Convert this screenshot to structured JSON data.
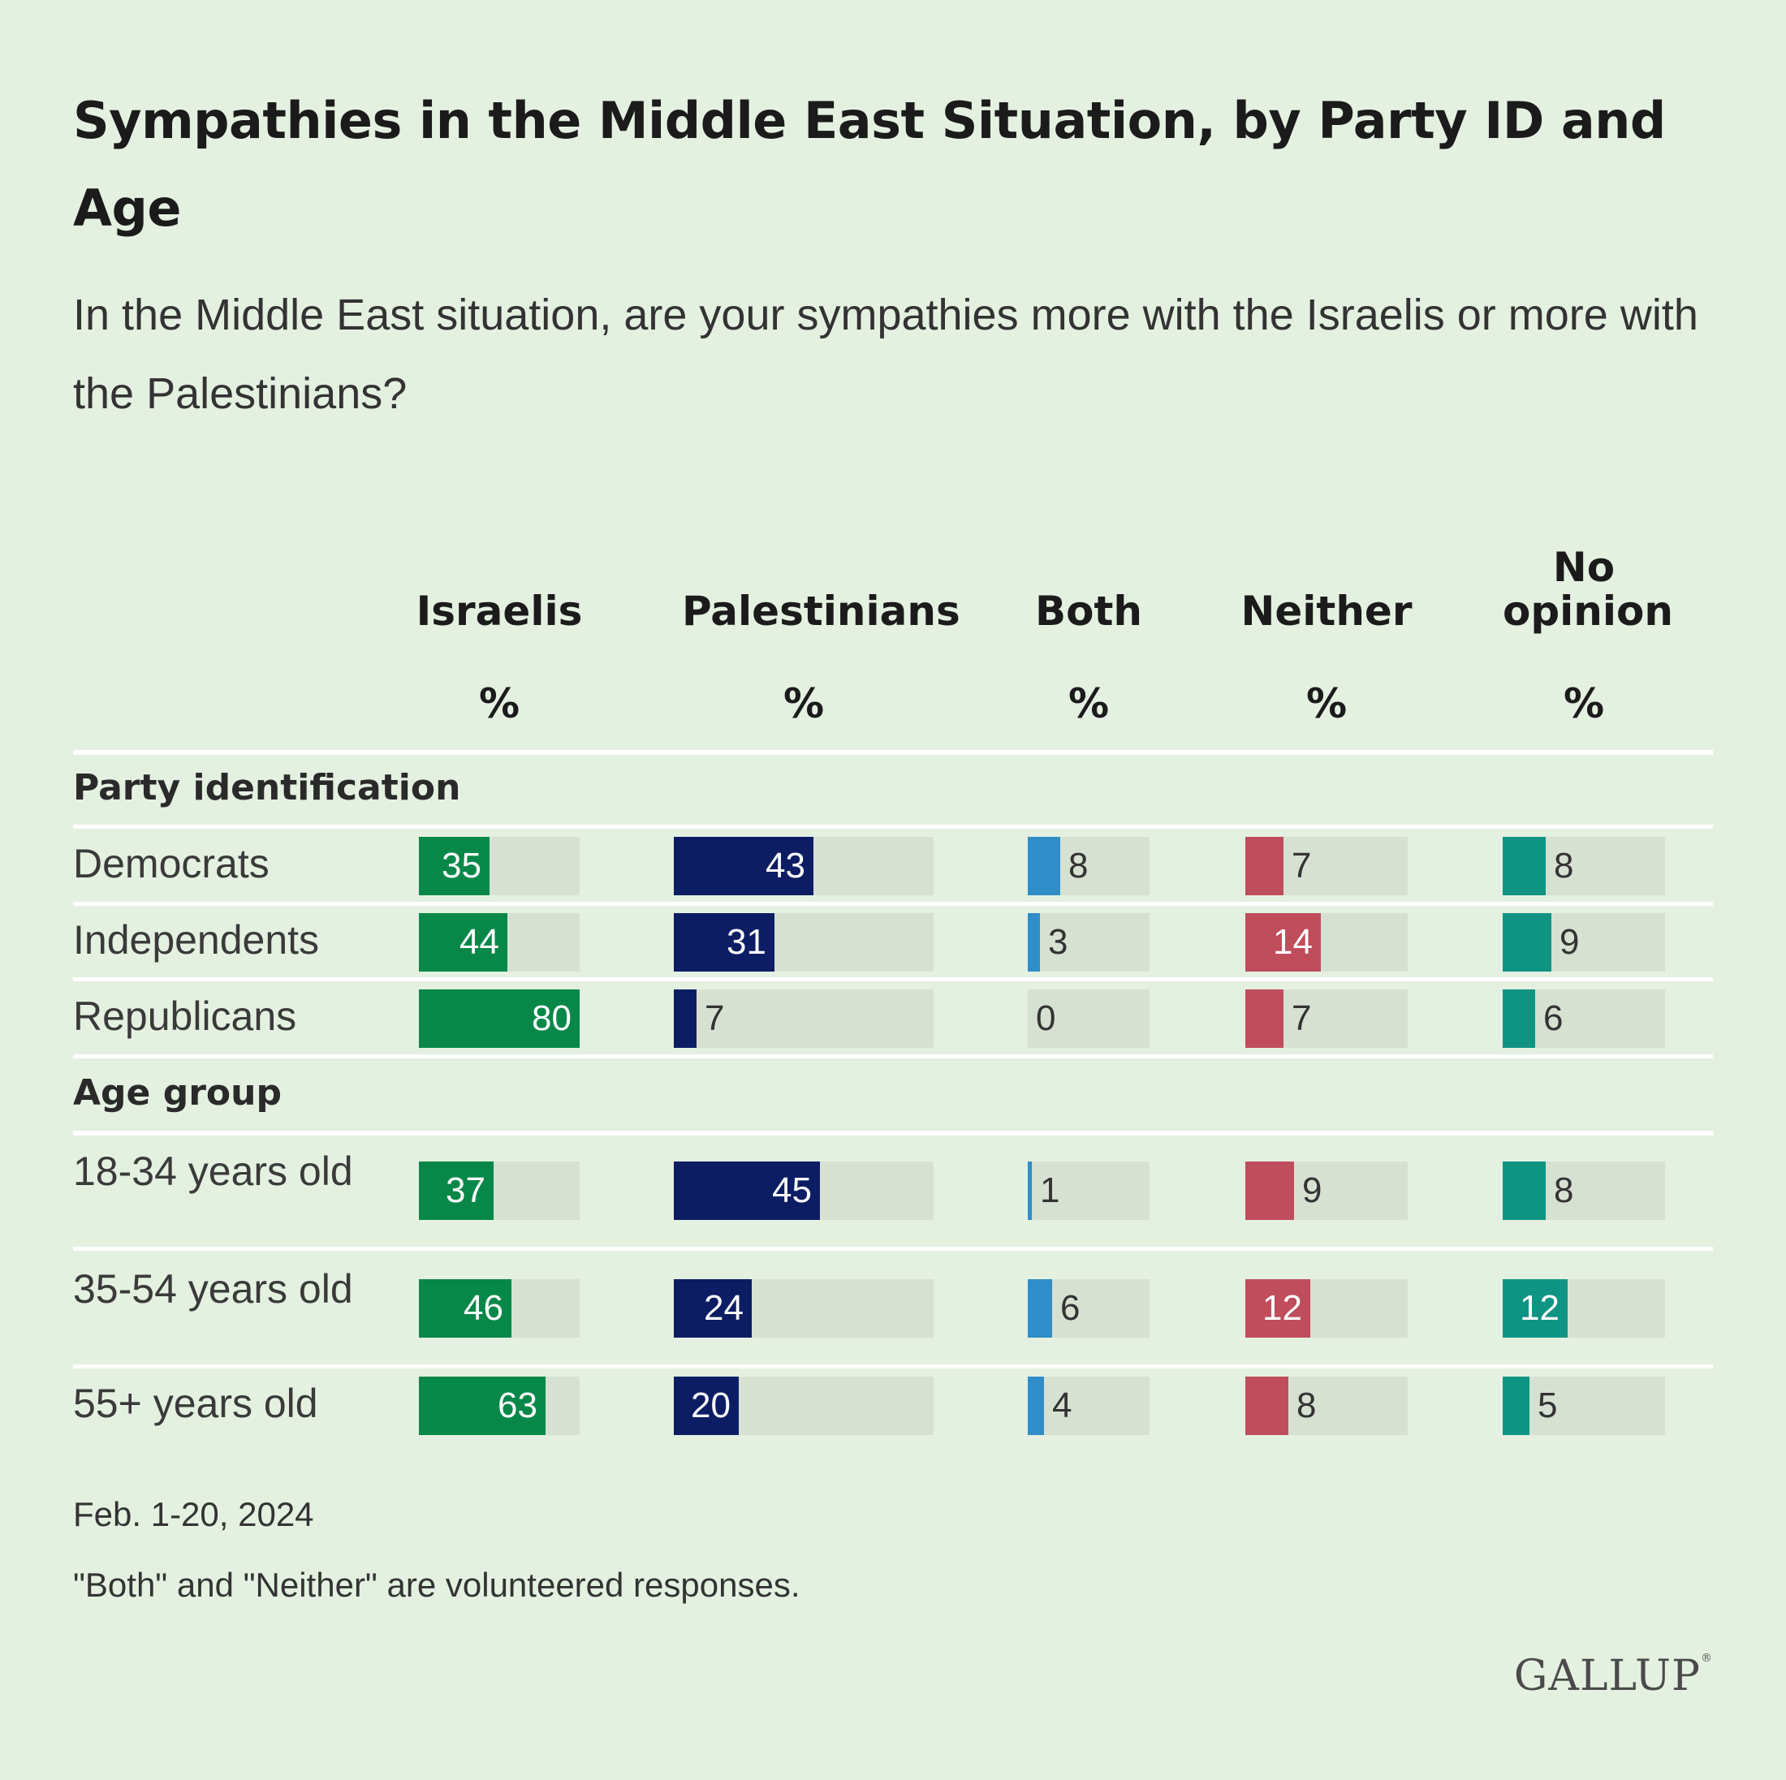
{
  "chart_data": {
    "type": "bar",
    "title": "Sympathies in the Middle East Situation, by Party ID and Age",
    "subtitle": "In the Middle East situation, are your sympathies more with the Israelis or more with the Palestinians?",
    "unit_label": "%",
    "columns": [
      {
        "name": "Israelis",
        "color": "#078848",
        "max": 80
      },
      {
        "name": "Palestinians",
        "color": "#0d1d63",
        "max": 80
      },
      {
        "name": "Both",
        "color": "#2f8dc7",
        "max": 30
      },
      {
        "name": "Neither",
        "color": "#bf4d5c",
        "max": 30
      },
      {
        "name": "No opinion",
        "color": "#0f9484",
        "max": 30
      }
    ],
    "groups": [
      {
        "label": "Party identification",
        "rows": [
          {
            "label": "Democrats",
            "values": [
              35,
              43,
              8,
              7,
              8
            ]
          },
          {
            "label": "Independents",
            "values": [
              44,
              31,
              3,
              14,
              9
            ]
          },
          {
            "label": "Republicans",
            "values": [
              80,
              7,
              0,
              7,
              6
            ]
          }
        ]
      },
      {
        "label": "Age group",
        "rows": [
          {
            "label": "18-34 years old",
            "values": [
              37,
              45,
              1,
              9,
              8
            ]
          },
          {
            "label": "35-54 years old",
            "values": [
              46,
              24,
              6,
              12,
              12
            ]
          },
          {
            "label": "55+ years old",
            "values": [
              63,
              20,
              4,
              8,
              5
            ]
          }
        ]
      }
    ]
  },
  "footnotes": {
    "date": "Feb. 1-20, 2024",
    "note": "\"Both\" and \"Neither\" are volunteered responses."
  },
  "logo": "GALLUP"
}
